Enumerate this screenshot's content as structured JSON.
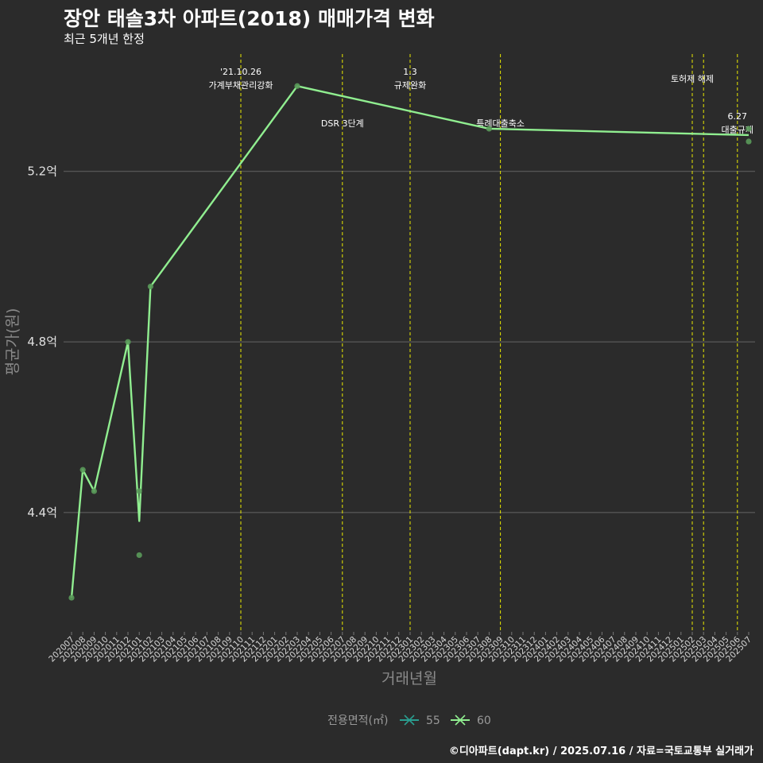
{
  "header": {
    "title": "장안 태솔3차 아파트(2018) 매매가격 변화",
    "subtitle": "최근 5개년 한정"
  },
  "footer": {
    "caption": "©디아파트(dapt.kr) / 2025.07.16 / 자료=국토교통부 실거래가"
  },
  "colors": {
    "background": "#2b2b2b",
    "grid": "#555555",
    "series_55": "#2a9d8f",
    "series_60": "#90ee90",
    "event_line": "#e8e800",
    "point": "#5a9a5a"
  },
  "chart_data": {
    "type": "line",
    "xlabel": "거래년월",
    "ylabel": "평균가(원)",
    "ylim": [
      4.12,
      5.49
    ],
    "y_ticks": [
      {
        "value": 4.4,
        "label": "4.4억"
      },
      {
        "value": 4.8,
        "label": "4.8억"
      },
      {
        "value": 5.2,
        "label": "5.2억"
      }
    ],
    "categories": [
      "202007",
      "202008",
      "202009",
      "202010",
      "202011",
      "202012",
      "202101",
      "202102",
      "202103",
      "202104",
      "202105",
      "202106",
      "202107",
      "202108",
      "202109",
      "202110",
      "202111",
      "202112",
      "202201",
      "202202",
      "202203",
      "202204",
      "202205",
      "202206",
      "202207",
      "202208",
      "202209",
      "202210",
      "202211",
      "202212",
      "202301",
      "202302",
      "202303",
      "202304",
      "202305",
      "202306",
      "202307",
      "202308",
      "202309",
      "202310",
      "202311",
      "202312",
      "202401",
      "202402",
      "202403",
      "202404",
      "202405",
      "202406",
      "202407",
      "202408",
      "202409",
      "202410",
      "202411",
      "202412",
      "202501",
      "202502",
      "202503",
      "202504",
      "202505",
      "202506",
      "202507"
    ],
    "legend": {
      "title": "전용면적(㎡)",
      "entries": [
        "55",
        "60"
      ]
    },
    "series": [
      {
        "name": "60",
        "line": [
          {
            "x": "202007",
            "y": 4.2
          },
          {
            "x": "202008",
            "y": 4.5
          },
          {
            "x": "202009",
            "y": 4.45
          },
          {
            "x": "202012",
            "y": 4.8
          },
          {
            "x": "202101",
            "y": 4.38
          },
          {
            "x": "202102",
            "y": 4.93
          },
          {
            "x": "202203",
            "y": 5.4
          },
          {
            "x": "202308",
            "y": 5.3
          },
          {
            "x": "202507",
            "y": 5.285
          }
        ],
        "points": [
          {
            "x": "202007",
            "y": 4.2
          },
          {
            "x": "202008",
            "y": 4.5
          },
          {
            "x": "202009",
            "y": 4.45
          },
          {
            "x": "202012",
            "y": 4.8
          },
          {
            "x": "202101",
            "y": 4.45
          },
          {
            "x": "202101",
            "y": 4.3
          },
          {
            "x": "202102",
            "y": 4.93
          },
          {
            "x": "202203",
            "y": 5.4
          },
          {
            "x": "202308",
            "y": 5.3
          },
          {
            "x": "202507",
            "y": 5.3
          },
          {
            "x": "202507",
            "y": 5.27
          }
        ]
      }
    ],
    "events": [
      {
        "x": "202110",
        "lines": [
          "'21.10.26",
          "가계부채관리강화"
        ],
        "pos": "top"
      },
      {
        "x": "202207",
        "lines": [
          "DSR 3단계"
        ],
        "pos": "mid"
      },
      {
        "x": "202301",
        "lines": [
          "1.3",
          "규제완화"
        ],
        "pos": "top"
      },
      {
        "x": "202309",
        "lines": [
          "특례대출축소"
        ],
        "pos": "mid"
      },
      {
        "x": "202502",
        "lines": [
          "토허제 해제"
        ],
        "pos": "upper"
      },
      {
        "x": "202503",
        "lines": [],
        "pos": "none"
      },
      {
        "x": "202506",
        "lines": [
          "6.27",
          "대출규제"
        ],
        "pos": "low"
      }
    ]
  }
}
